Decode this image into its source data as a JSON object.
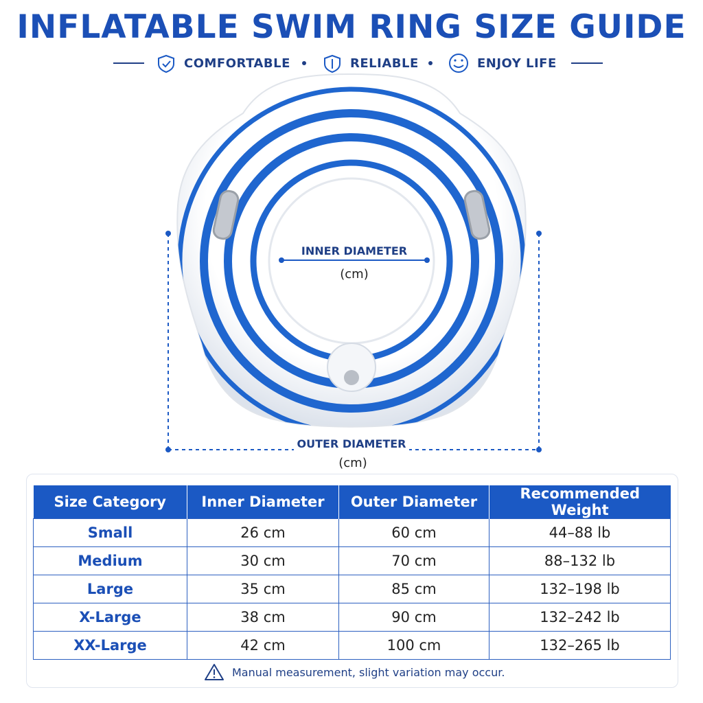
{
  "header": {
    "title": "INFLATABLE SWIM RING SIZE GUIDE",
    "features": [
      "COMFORTABLE",
      "RELIABLE",
      "ENJOY LIFE"
    ]
  },
  "diagram": {
    "inner_label": "INNER DIAMETER",
    "inner_unit": "(cm)",
    "outer_label": "OUTER DIAMETER",
    "outer_unit": "(cm)"
  },
  "table": {
    "header": [
      "Size Category",
      "Inner Diameter",
      "Outer Diameter",
      "Recommended Weight"
    ],
    "rows": [
      [
        "Small",
        "26 cm",
        "60 cm",
        "44–88 lb"
      ],
      [
        "Medium",
        "30 cm",
        "70 cm",
        "88–132 lb"
      ],
      [
        "Large",
        "35 cm",
        "85 cm",
        "132–198 lb"
      ],
      [
        "X-Large",
        "38 cm",
        "90 cm",
        "132–242 lb"
      ],
      [
        "XX-Large",
        "42 cm",
        "100 cm",
        "132–265 lb"
      ]
    ]
  },
  "footnote": "Manual measurement, slight variation may occur."
}
